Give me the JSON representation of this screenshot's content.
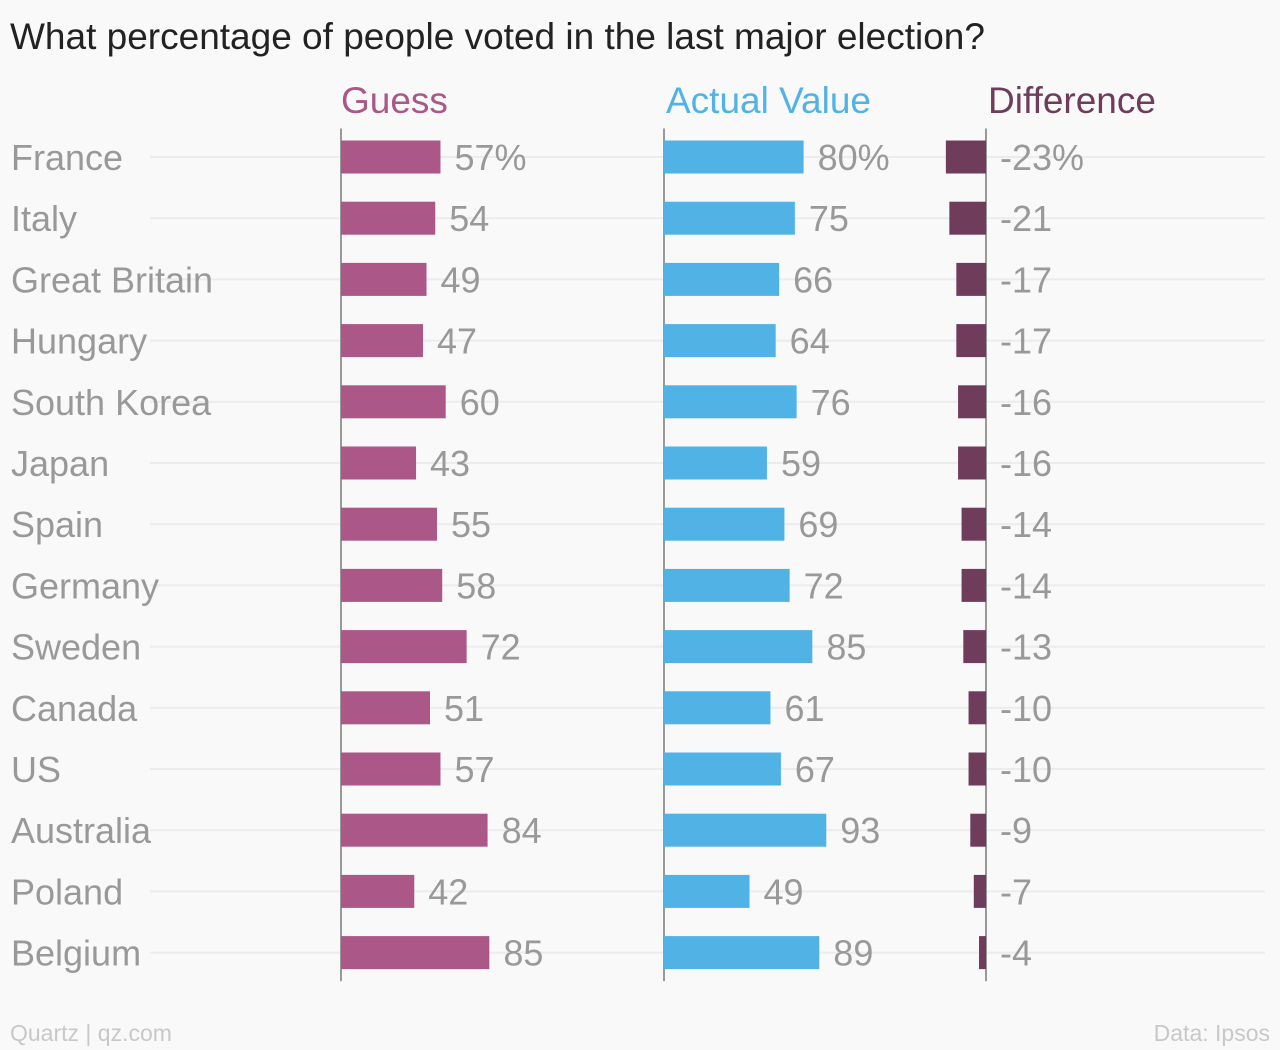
{
  "chart_data": {
    "type": "bar",
    "title": "What percentage of people voted in the last major election?",
    "categories": [
      "France",
      "Italy",
      "Great Britain",
      "Hungary",
      "South Korea",
      "Japan",
      "Spain",
      "Germany",
      "Sweden",
      "Canada",
      "US",
      "Australia",
      "Poland",
      "Belgium"
    ],
    "series": [
      {
        "name": "Guess",
        "color": "#ab5787",
        "values": [
          57,
          54,
          49,
          47,
          60,
          43,
          55,
          58,
          72,
          51,
          57,
          84,
          42,
          85
        ],
        "value_labels": [
          "57%",
          "54",
          "49",
          "47",
          "60",
          "43",
          "55",
          "58",
          "72",
          "51",
          "57",
          "84",
          "42",
          "85"
        ]
      },
      {
        "name": "Actual Value",
        "color": "#51b2e5",
        "values": [
          80,
          75,
          66,
          64,
          76,
          59,
          69,
          72,
          85,
          61,
          67,
          93,
          49,
          89
        ],
        "value_labels": [
          "80%",
          "75",
          "66",
          "64",
          "76",
          "59",
          "69",
          "72",
          "85",
          "61",
          "67",
          "93",
          "49",
          "89"
        ]
      },
      {
        "name": "Difference",
        "color": "#703c5c",
        "values": [
          -23,
          -21,
          -17,
          -17,
          -16,
          -16,
          -14,
          -14,
          -13,
          -10,
          -10,
          -9,
          -7,
          -4
        ],
        "value_labels": [
          "-23%",
          "-21",
          "-17",
          "-17",
          "-16",
          "-16",
          "-14",
          "-14",
          "-13",
          "-10",
          "-10",
          "-9",
          "-7",
          "-4"
        ]
      }
    ],
    "xlabel": "",
    "ylabel": "",
    "grid": false,
    "legend": "column headers above each bar group"
  },
  "footer": {
    "credit": "Quartz | qz.com",
    "source": "Data: Ipsos"
  }
}
